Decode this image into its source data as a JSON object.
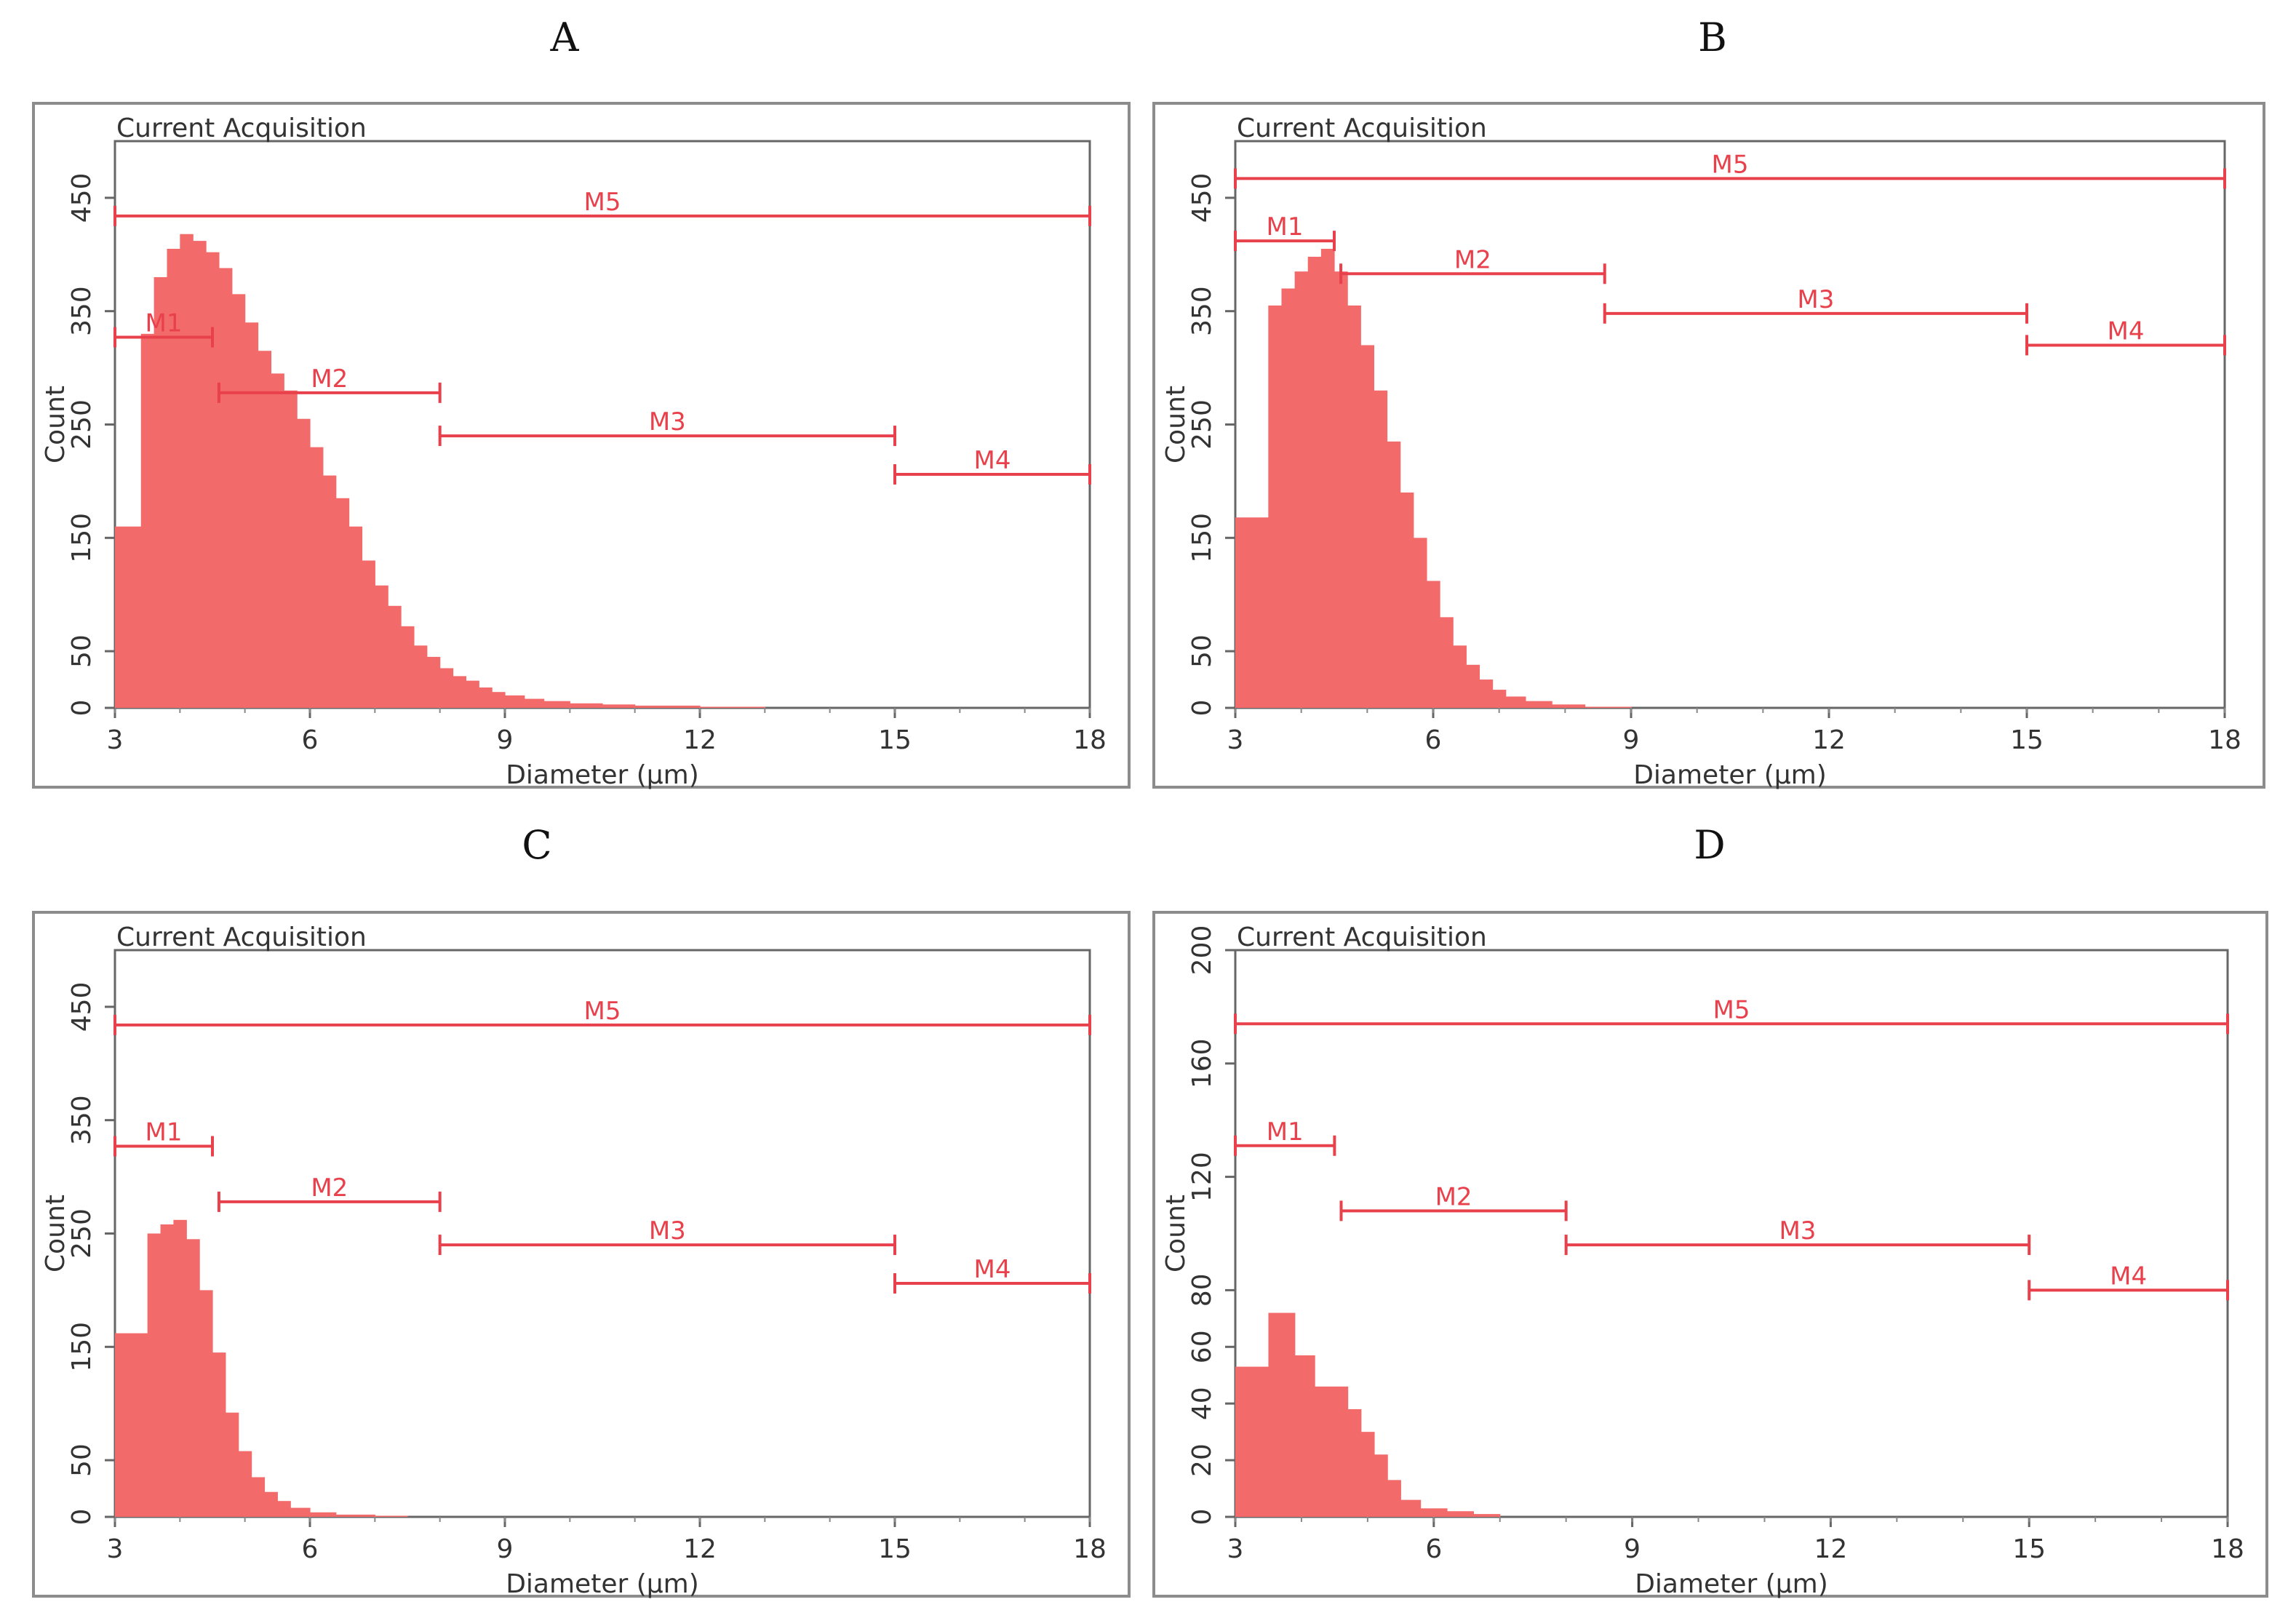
{
  "chart_data": [
    {
      "panel": "A",
      "type": "histogram",
      "title": "Current Acquisition",
      "xlabel": "Diameter (μm)",
      "ylabel": "Count",
      "xlim": [
        3,
        18
      ],
      "ylim": [
        0,
        500
      ],
      "xticks": [
        3,
        6,
        9,
        12,
        15,
        18
      ],
      "yticks": [
        0,
        50,
        150,
        250,
        350,
        450
      ],
      "color": "#f26a6a",
      "marker_color": "#e8414b",
      "bins": [
        [
          3.0,
          160
        ],
        [
          3.4,
          330
        ],
        [
          3.6,
          380
        ],
        [
          3.8,
          405
        ],
        [
          4.0,
          418
        ],
        [
          4.2,
          412
        ],
        [
          4.4,
          402
        ],
        [
          4.6,
          388
        ],
        [
          4.8,
          365
        ],
        [
          5.0,
          340
        ],
        [
          5.2,
          315
        ],
        [
          5.4,
          295
        ],
        [
          5.6,
          280
        ],
        [
          5.8,
          255
        ],
        [
          6.0,
          230
        ],
        [
          6.2,
          205
        ],
        [
          6.4,
          185
        ],
        [
          6.6,
          160
        ],
        [
          6.8,
          130
        ],
        [
          7.0,
          108
        ],
        [
          7.2,
          90
        ],
        [
          7.4,
          72
        ],
        [
          7.6,
          55
        ],
        [
          7.8,
          45
        ],
        [
          8.0,
          35
        ],
        [
          8.2,
          28
        ],
        [
          8.4,
          24
        ],
        [
          8.6,
          18
        ],
        [
          8.8,
          14
        ],
        [
          9.0,
          11
        ],
        [
          9.3,
          8
        ],
        [
          9.6,
          6
        ],
        [
          10.0,
          4
        ],
        [
          10.5,
          3
        ],
        [
          11.0,
          2
        ],
        [
          12.0,
          1
        ],
        [
          13.0,
          0
        ]
      ],
      "markers": [
        {
          "name": "M1",
          "x1": 3.0,
          "x2": 4.5,
          "y": 327
        },
        {
          "name": "M2",
          "x1": 4.6,
          "x2": 8.0,
          "y": 278
        },
        {
          "name": "M3",
          "x1": 8.0,
          "x2": 15.0,
          "y": 240
        },
        {
          "name": "M4",
          "x1": 15.0,
          "x2": 18.0,
          "y": 206
        },
        {
          "name": "M5",
          "x1": 3.0,
          "x2": 18.0,
          "y": 434
        }
      ]
    },
    {
      "panel": "B",
      "type": "histogram",
      "title": "Current Acquisition",
      "xlabel": "Diameter (μm)",
      "ylabel": "Count",
      "xlim": [
        3,
        18
      ],
      "ylim": [
        0,
        500
      ],
      "xticks": [
        3,
        6,
        9,
        12,
        15,
        18
      ],
      "yticks": [
        0,
        50,
        150,
        250,
        350,
        450
      ],
      "color": "#f26a6a",
      "marker_color": "#e8414b",
      "bins": [
        [
          3.0,
          168
        ],
        [
          3.5,
          355
        ],
        [
          3.7,
          370
        ],
        [
          3.9,
          385
        ],
        [
          4.1,
          398
        ],
        [
          4.3,
          405
        ],
        [
          4.5,
          385
        ],
        [
          4.7,
          355
        ],
        [
          4.9,
          320
        ],
        [
          5.1,
          280
        ],
        [
          5.3,
          235
        ],
        [
          5.5,
          190
        ],
        [
          5.7,
          150
        ],
        [
          5.9,
          112
        ],
        [
          6.1,
          80
        ],
        [
          6.3,
          55
        ],
        [
          6.5,
          38
        ],
        [
          6.7,
          25
        ],
        [
          6.9,
          16
        ],
        [
          7.1,
          10
        ],
        [
          7.4,
          6
        ],
        [
          7.8,
          3
        ],
        [
          8.3,
          1
        ],
        [
          9.0,
          0
        ]
      ],
      "markers": [
        {
          "name": "M1",
          "x1": 3.0,
          "x2": 4.5,
          "y": 412
        },
        {
          "name": "M2",
          "x1": 4.6,
          "x2": 8.6,
          "y": 383
        },
        {
          "name": "M3",
          "x1": 8.6,
          "x2": 15.0,
          "y": 348
        },
        {
          "name": "M4",
          "x1": 15.0,
          "x2": 18.0,
          "y": 320
        },
        {
          "name": "M5",
          "x1": 3.0,
          "x2": 18.0,
          "y": 467
        }
      ]
    },
    {
      "panel": "C",
      "type": "histogram",
      "title": "Current Acquisition",
      "xlabel": "Diameter (μm)",
      "ylabel": "Count",
      "xlim": [
        3,
        18
      ],
      "ylim": [
        0,
        500
      ],
      "xticks": [
        3,
        6,
        9,
        12,
        15,
        18
      ],
      "yticks": [
        0,
        50,
        150,
        250,
        350,
        450
      ],
      "color": "#f26a6a",
      "marker_color": "#e8414b",
      "bins": [
        [
          3.0,
          162
        ],
        [
          3.5,
          250
        ],
        [
          3.7,
          258
        ],
        [
          3.9,
          262
        ],
        [
          4.1,
          245
        ],
        [
          4.3,
          200
        ],
        [
          4.5,
          145
        ],
        [
          4.7,
          92
        ],
        [
          4.9,
          58
        ],
        [
          5.1,
          35
        ],
        [
          5.3,
          22
        ],
        [
          5.5,
          14
        ],
        [
          5.7,
          8
        ],
        [
          6.0,
          4
        ],
        [
          6.4,
          2
        ],
        [
          7.0,
          1
        ],
        [
          7.5,
          0
        ]
      ],
      "markers": [
        {
          "name": "M1",
          "x1": 3.0,
          "x2": 4.5,
          "y": 327
        },
        {
          "name": "M2",
          "x1": 4.6,
          "x2": 8.0,
          "y": 278
        },
        {
          "name": "M3",
          "x1": 8.0,
          "x2": 15.0,
          "y": 240
        },
        {
          "name": "M4",
          "x1": 15.0,
          "x2": 18.0,
          "y": 206
        },
        {
          "name": "M5",
          "x1": 3.0,
          "x2": 18.0,
          "y": 434
        }
      ]
    },
    {
      "panel": "D",
      "type": "histogram",
      "title": "Current Acquisition",
      "xlabel": "Diameter (μm)",
      "ylabel": "Count",
      "xlim": [
        3,
        18
      ],
      "ylim": [
        0,
        200
      ],
      "xticks": [
        3,
        6,
        9,
        12,
        15,
        18
      ],
      "yticks": [
        0,
        20,
        40,
        60,
        80,
        120,
        160,
        200
      ],
      "color": "#f26a6a",
      "marker_color": "#e8414b",
      "bins": [
        [
          3.0,
          53
        ],
        [
          3.5,
          72
        ],
        [
          3.9,
          57
        ],
        [
          4.2,
          46
        ],
        [
          4.7,
          38
        ],
        [
          4.9,
          30
        ],
        [
          5.1,
          22
        ],
        [
          5.3,
          13
        ],
        [
          5.5,
          6
        ],
        [
          5.8,
          3
        ],
        [
          6.2,
          2
        ],
        [
          6.6,
          1
        ],
        [
          7.0,
          0
        ]
      ],
      "markers": [
        {
          "name": "M1",
          "x1": 3.0,
          "x2": 4.5,
          "y": 131
        },
        {
          "name": "M2",
          "x1": 4.6,
          "x2": 8.0,
          "y": 108
        },
        {
          "name": "M3",
          "x1": 8.0,
          "x2": 15.0,
          "y": 96
        },
        {
          "name": "M4",
          "x1": 15.0,
          "x2": 18.0,
          "y": 80
        },
        {
          "name": "M5",
          "x1": 3.0,
          "x2": 18.0,
          "y": 174
        }
      ]
    }
  ]
}
